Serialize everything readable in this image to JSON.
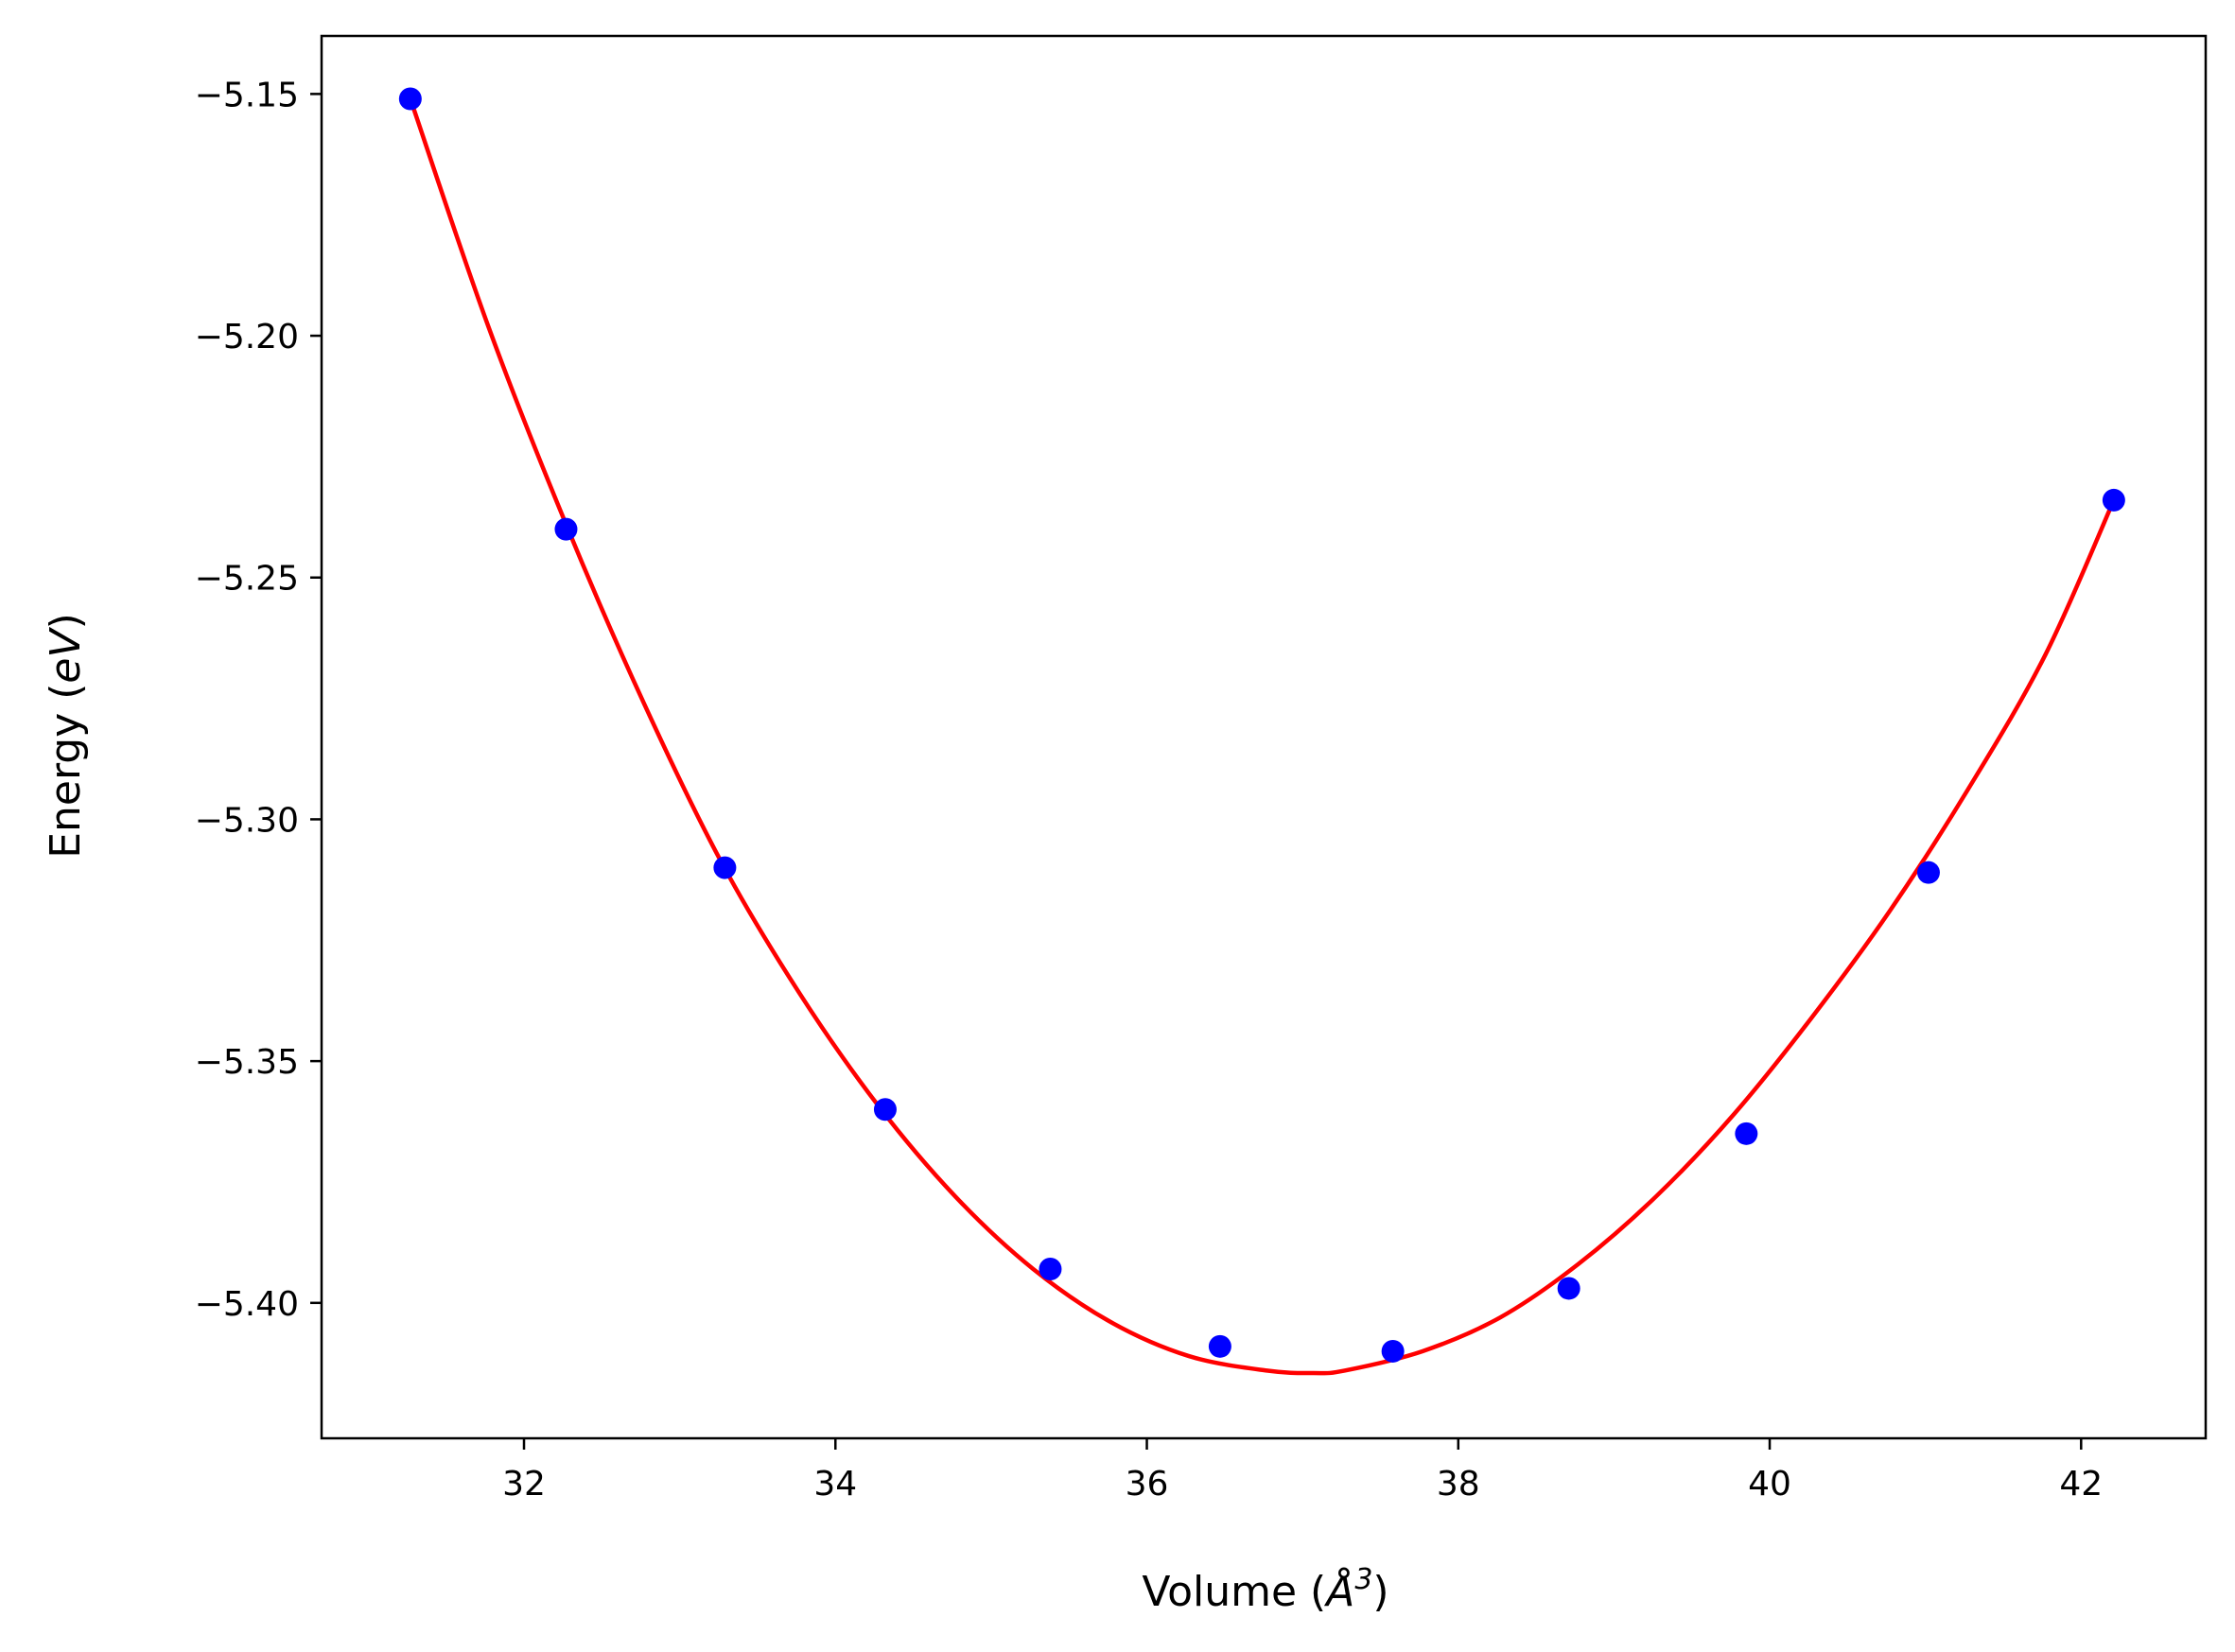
{
  "chart_data": {
    "type": "scatter",
    "xlabel": "Volume (",
    "xlabel_unit": "Å",
    "xlabel_exp": "3",
    "xlabel_end": ")",
    "ylabel": "Energy (",
    "ylabel_unit": "eV",
    "ylabel_end": ")",
    "xlim": [
      30.7,
      42.8
    ],
    "ylim": [
      -5.428,
      -5.138
    ],
    "xticks": [
      32,
      34,
      36,
      38,
      40,
      42
    ],
    "xtick_labels": [
      "32",
      "34",
      "36",
      "38",
      "40",
      "42"
    ],
    "yticks": [
      -5.15,
      -5.2,
      -5.25,
      -5.3,
      -5.35,
      -5.4
    ],
    "ytick_labels": [
      "−5.15",
      "−5.20",
      "−5.25",
      "−5.30",
      "−5.35",
      "−5.40"
    ],
    "grid": false,
    "series": [
      {
        "kind": "points",
        "color": "#0000ff",
        "x": [
          31.27,
          32.27,
          33.29,
          34.32,
          35.38,
          36.47,
          37.58,
          38.71,
          39.85,
          41.02,
          42.21
        ],
        "y": [
          -5.151,
          -5.24,
          -5.31,
          -5.36,
          -5.393,
          -5.409,
          -5.41,
          -5.397,
          -5.365,
          -5.311,
          -5.234
        ]
      },
      {
        "kind": "fit-curve",
        "color": "#ff0000",
        "x": [
          31.27,
          31.77,
          32.27,
          32.77,
          33.27,
          33.77,
          34.27,
          34.77,
          35.27,
          35.77,
          36.27,
          36.77,
          37.07,
          37.27,
          37.77,
          38.27,
          38.77,
          39.27,
          39.77,
          40.27,
          40.77,
          41.27,
          41.77,
          42.21
        ],
        "y": [
          -5.151,
          -5.198,
          -5.239,
          -5.276,
          -5.309,
          -5.336,
          -5.359,
          -5.378,
          -5.393,
          -5.404,
          -5.411,
          -5.414,
          -5.4145,
          -5.414,
          -5.41,
          -5.403,
          -5.392,
          -5.378,
          -5.361,
          -5.341,
          -5.319,
          -5.294,
          -5.266,
          -5.234
        ]
      }
    ]
  }
}
